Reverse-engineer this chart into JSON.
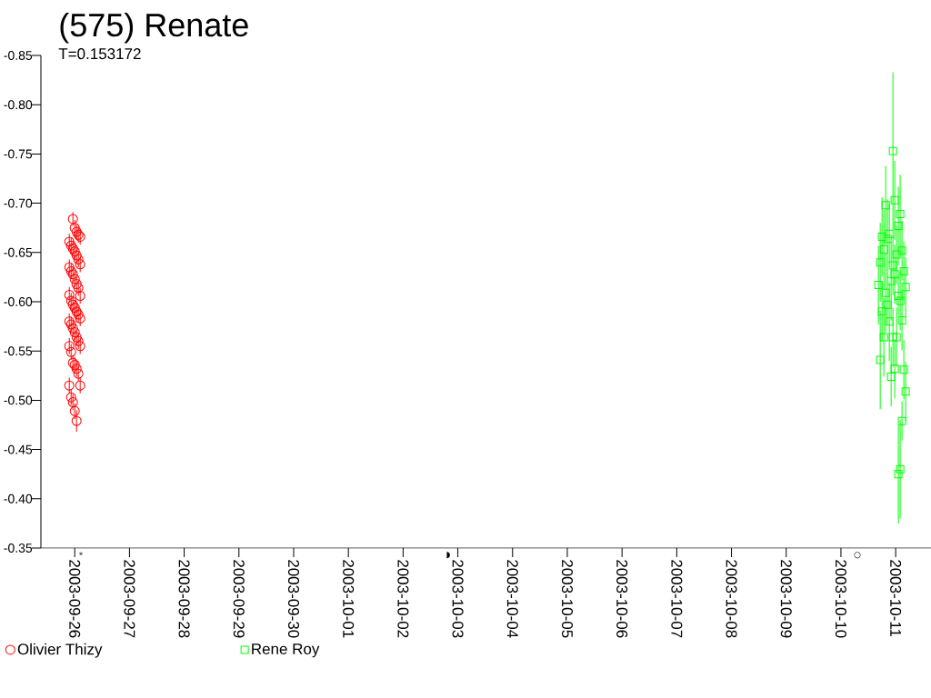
{
  "chart_data": {
    "type": "scatter",
    "title": "(575) Renate",
    "subtitle": "T=0.153172",
    "xlim": [
      "2003-09-25T09:10",
      "2003-10-11T15:30"
    ],
    "xticks": [
      "2003-09-26",
      "2003-09-27",
      "2003-09-28",
      "2003-09-29",
      "2003-09-30",
      "2003-10-01",
      "2003-10-02",
      "2003-10-03",
      "2003-10-04",
      "2003-10-05",
      "2003-10-06",
      "2003-10-07",
      "2003-10-08",
      "2003-10-09",
      "2003-10-10",
      "2003-10-11"
    ],
    "ylim": [
      -0.35,
      -0.85
    ],
    "yticks": [
      -0.35,
      {
        "value": -0.4,
        "label": "-0.40"
      },
      -0.45,
      {
        "value": -0.5,
        "label": "-0.50"
      },
      -0.55,
      {
        "value": -0.6,
        "label": "-0.60"
      },
      -0.65,
      {
        "value": -0.7,
        "label": "-0.70"
      },
      -0.75,
      {
        "value": -0.8,
        "label": "-0.80"
      },
      -0.85
    ],
    "legend": "bottom left",
    "series": [
      {
        "name": "Olivier Thizy",
        "color": "#ff0000",
        "marker": "circle",
        "x": [
          "2003-09-25T23:12",
          "2003-09-26T00:00",
          "2003-09-26T00:48",
          "2003-09-26T01:35",
          "2003-09-26T02:23",
          "2003-09-25T21:37",
          "2003-09-25T22:25",
          "2003-09-25T23:12",
          "2003-09-26T00:00",
          "2003-09-26T00:48",
          "2003-09-26T01:35",
          "2003-09-26T02:23",
          "2003-09-25T21:37",
          "2003-09-25T22:25",
          "2003-09-25T23:12",
          "2003-09-26T00:00",
          "2003-09-26T00:48",
          "2003-09-26T01:35",
          "2003-09-26T02:23",
          "2003-09-25T21:37",
          "2003-09-25T22:25",
          "2003-09-25T23:12",
          "2003-09-26T00:00",
          "2003-09-26T00:48",
          "2003-09-26T01:35",
          "2003-09-26T02:23",
          "2003-09-25T21:37",
          "2003-09-25T22:25",
          "2003-09-25T23:12",
          "2003-09-26T00:00",
          "2003-09-26T00:48",
          "2003-09-26T01:35",
          "2003-09-26T02:23",
          "2003-09-25T21:37",
          "2003-09-25T22:25",
          "2003-09-25T23:12",
          "2003-09-26T00:00",
          "2003-09-26T00:48",
          "2003-09-26T01:35",
          "2003-09-26T02:23",
          "2003-09-25T21:37",
          "2003-09-25T22:25",
          "2003-09-25T23:12",
          "2003-09-26T00:00",
          "2003-09-26T00:48"
        ],
        "values": [
          -0.684,
          -0.675,
          -0.671,
          -0.668,
          -0.666,
          -0.661,
          -0.657,
          -0.654,
          -0.651,
          -0.647,
          -0.643,
          -0.638,
          -0.635,
          -0.631,
          -0.628,
          -0.623,
          -0.618,
          -0.614,
          -0.606,
          -0.607,
          -0.601,
          -0.597,
          -0.594,
          -0.59,
          -0.587,
          -0.583,
          -0.58,
          -0.577,
          -0.573,
          -0.569,
          -0.564,
          -0.56,
          -0.555,
          -0.555,
          -0.549,
          -0.538,
          -0.536,
          -0.532,
          -0.527,
          -0.515,
          -0.515,
          -0.503,
          -0.498,
          -0.489,
          -0.479
        ],
        "errors": [
          0.007,
          0.008,
          0.008,
          0.008,
          0.008,
          0.008,
          0.008,
          0.008,
          0.008,
          0.008,
          0.008,
          0.008,
          0.008,
          0.008,
          0.008,
          0.008,
          0.008,
          0.008,
          0.008,
          0.008,
          0.008,
          0.008,
          0.008,
          0.008,
          0.008,
          0.008,
          0.008,
          0.008,
          0.008,
          0.008,
          0.008,
          0.008,
          0.008,
          0.008,
          0.008,
          0.008,
          0.008,
          0.008,
          0.008,
          0.008,
          0.008,
          0.008,
          0.008,
          0.008,
          0.011
        ]
      },
      {
        "name": "Rene Roy",
        "color": "#00ff00",
        "marker": "square",
        "x": [
          "2003-10-10T16:26",
          "2003-10-10T17:14",
          "2003-10-10T17:14",
          "2003-10-10T18:02",
          "2003-10-10T18:02",
          "2003-10-10T18:50",
          "2003-10-10T18:50",
          "2003-10-10T19:37",
          "2003-10-10T19:37",
          "2003-10-10T20:25",
          "2003-10-10T20:25",
          "2003-10-10T21:13",
          "2003-10-10T21:13",
          "2003-10-10T22:01",
          "2003-10-10T22:01",
          "2003-10-10T22:49",
          "2003-10-10T22:49",
          "2003-10-10T22:49",
          "2003-10-10T23:36",
          "2003-10-10T23:36",
          "2003-10-10T23:36",
          "2003-10-11T00:24",
          "2003-10-11T00:24",
          "2003-10-11T01:11",
          "2003-10-11T01:11",
          "2003-10-11T01:11",
          "2003-10-11T01:59",
          "2003-10-11T01:59",
          "2003-10-11T01:59",
          "2003-10-11T02:47",
          "2003-10-11T02:47",
          "2003-10-11T02:47",
          "2003-10-11T03:35",
          "2003-10-11T03:35",
          "2003-10-11T04:23",
          "2003-10-11T04:23"
        ],
        "values": [
          -0.617,
          -0.64,
          -0.541,
          -0.666,
          -0.59,
          -0.653,
          -0.564,
          -0.698,
          -0.609,
          -0.664,
          -0.597,
          -0.669,
          -0.58,
          -0.621,
          -0.524,
          -0.753,
          -0.637,
          -0.564,
          -0.703,
          -0.628,
          -0.532,
          -0.648,
          -0.564,
          -0.677,
          -0.606,
          -0.425,
          -0.689,
          -0.601,
          -0.43,
          -0.652,
          -0.581,
          -0.479,
          -0.631,
          -0.531,
          -0.615,
          -0.509
        ],
        "errors": [
          0.04,
          0.04,
          0.05,
          0.04,
          0.03,
          0.04,
          0.04,
          0.04,
          0.04,
          0.04,
          0.02,
          0.03,
          0.04,
          0.04,
          0.03,
          0.08,
          0.03,
          0.03,
          0.04,
          0.03,
          0.03,
          0.03,
          0.03,
          0.04,
          0.02,
          0.05,
          0.04,
          0.03,
          0.05,
          0.03,
          0.03,
          0.02,
          0.03,
          0.03,
          0.03,
          0.03
        ]
      }
    ],
    "annotations": [
      "*",
      "◗",
      "○"
    ]
  }
}
